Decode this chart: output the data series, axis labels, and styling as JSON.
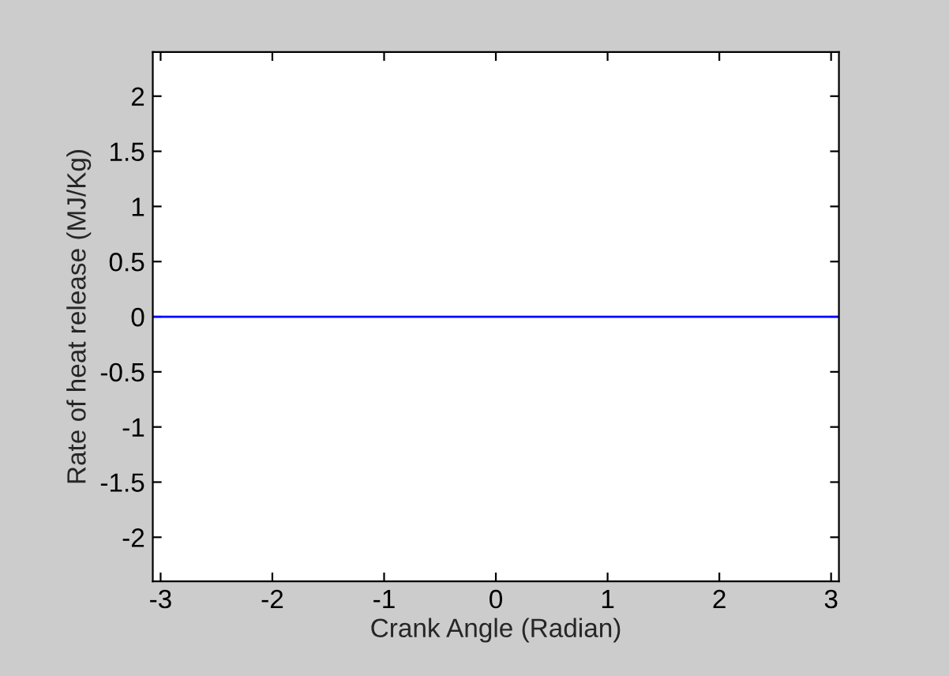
{
  "chart_data": {
    "type": "line",
    "xlabel": "Crank Angle (Radian)",
    "ylabel": "Rate of heat release (MJ/Kg)",
    "series": [
      {
        "color": "#0000ff",
        "x": [
          -3.07,
          3.07
        ],
        "values": [
          0,
          0
        ]
      }
    ],
    "xlim": [
      -3.07,
      3.07
    ],
    "xticks": [
      -3,
      -2,
      -1,
      0,
      1,
      2,
      3
    ],
    "ylim": [
      -2.4,
      2.4
    ],
    "yticks": [
      -2,
      -1.5,
      -1,
      -0.5,
      0,
      0.5,
      1,
      1.5,
      2
    ],
    "grid": false,
    "legend": false,
    "marker": "none",
    "line_style": "solid"
  }
}
